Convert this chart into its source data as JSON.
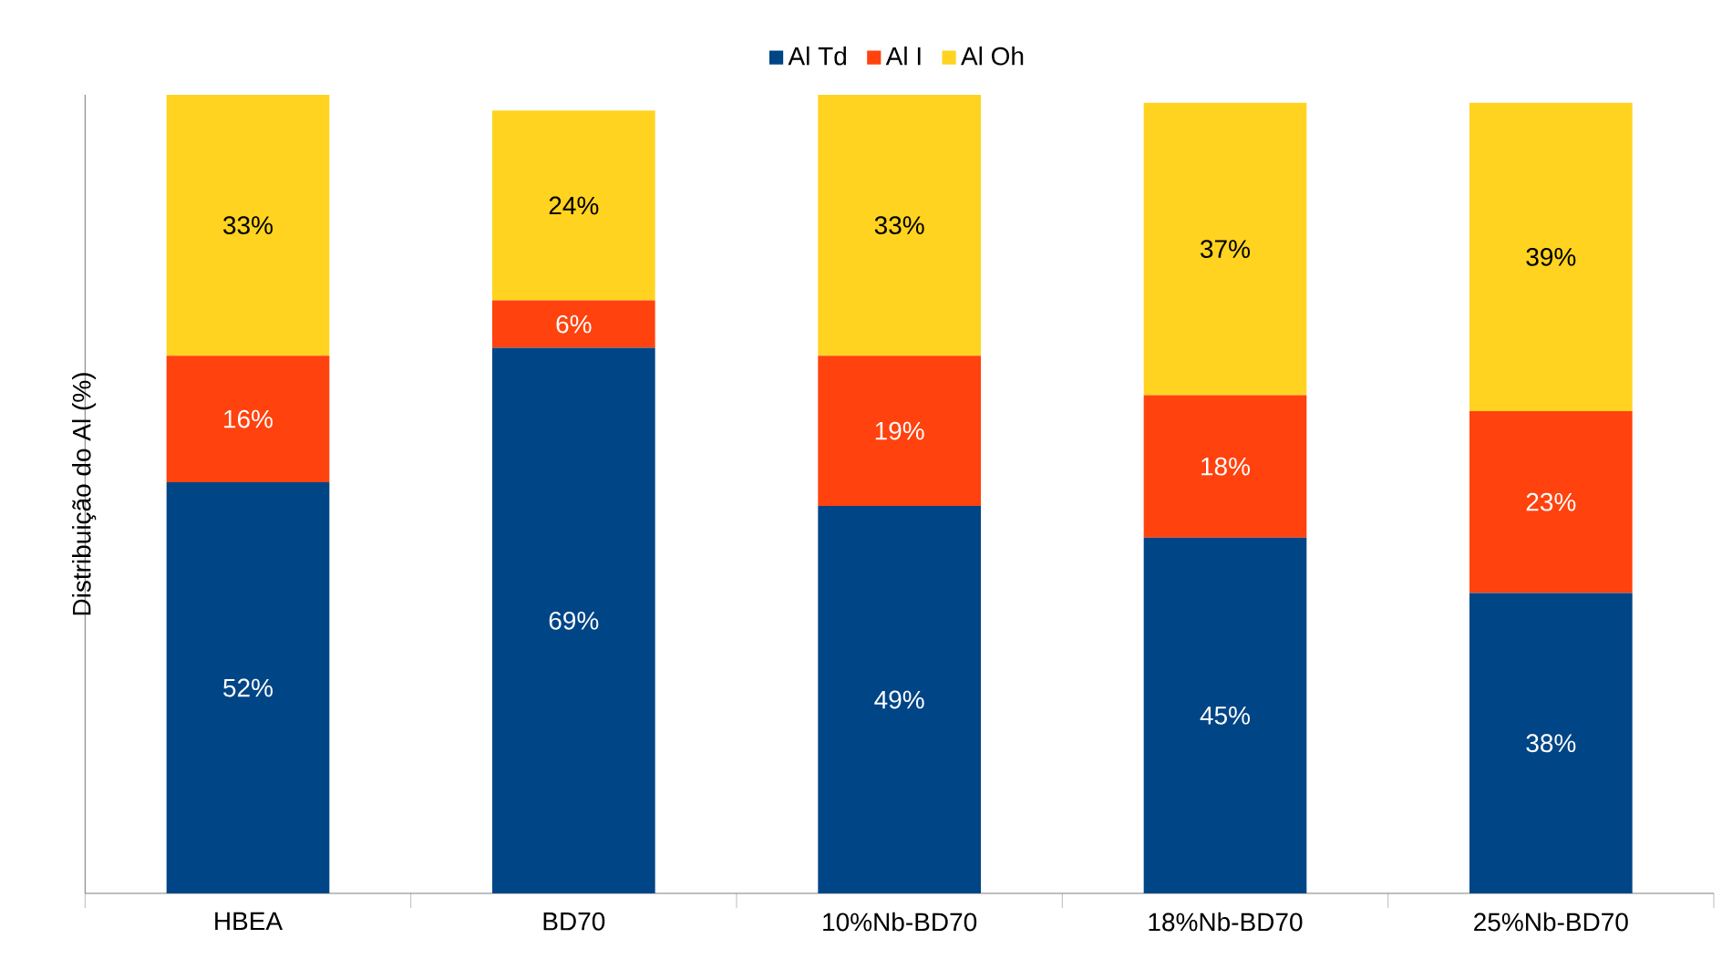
{
  "chart_data": {
    "type": "bar",
    "stacked": true,
    "ylabel": "Distribuição do Al (%)",
    "legend": "top",
    "categories": [
      "HBEA",
      "BD70",
      "10%Nb-BD70",
      "18%Nb-BD70",
      "25%Nb-BD70"
    ],
    "series": [
      {
        "name": "Al Td",
        "color": "#004586",
        "values": [
          52,
          69,
          49,
          45,
          38
        ],
        "value_labels": [
          "52%",
          "69%",
          "49%",
          "45%",
          "38%"
        ]
      },
      {
        "name": "Al I",
        "color": "#ff420e",
        "values": [
          16,
          6,
          19,
          18,
          23
        ],
        "value_labels": [
          "16%",
          "6%",
          "19%",
          "18%",
          "23%"
        ]
      },
      {
        "name": "Al Oh",
        "color": "#ffd320",
        "values": [
          33,
          24,
          33,
          37,
          39
        ],
        "value_labels": [
          "33%",
          "24%",
          "33%",
          "37%",
          "39%"
        ]
      }
    ]
  }
}
